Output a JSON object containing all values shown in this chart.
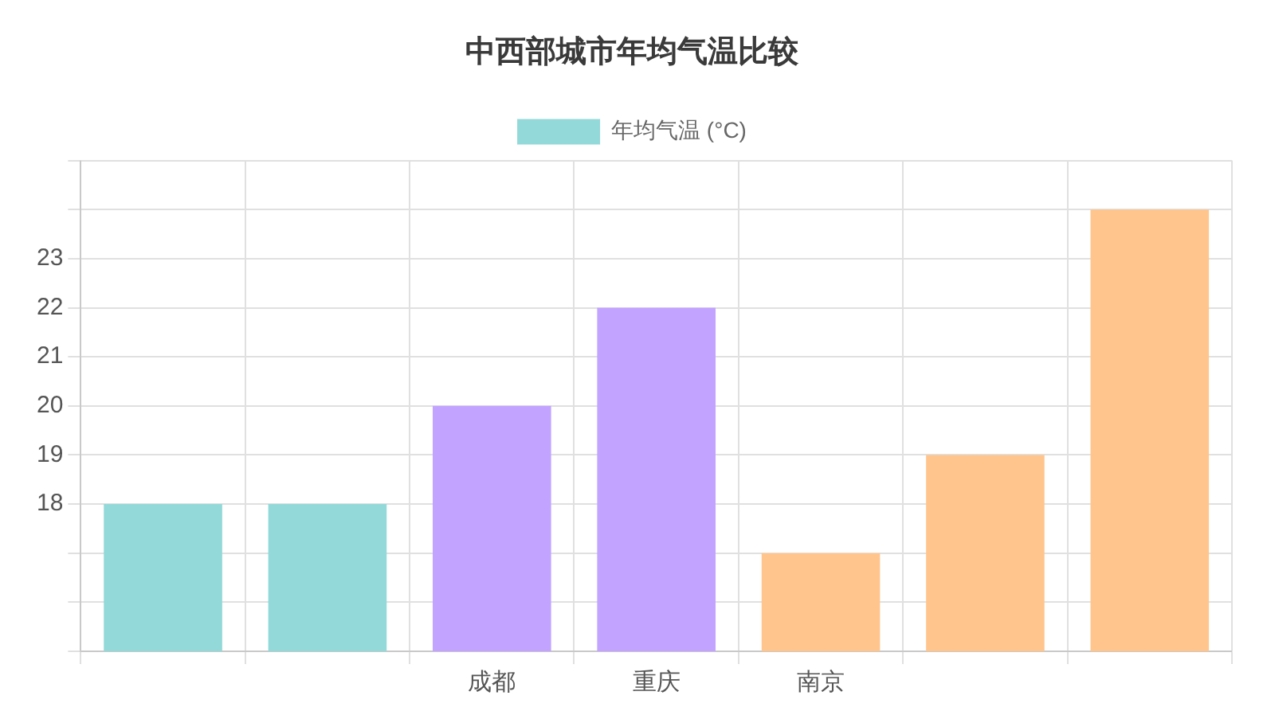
{
  "chart_data": {
    "type": "bar",
    "title": "中西部城市年均气温比较",
    "categories": [
      null,
      null,
      "成都",
      "重庆",
      "南京",
      null,
      null
    ],
    "series": [
      {
        "name": "年均气温 (°C)",
        "colors": [
          "#93d9d9",
          "#93d9d9",
          "#c2a3ff",
          "#c2a3ff",
          "#ffc58c",
          "#ffc58c",
          "#ffc58c"
        ],
        "values": [
          18,
          18,
          20,
          22,
          17,
          19,
          24
        ]
      }
    ],
    "ylim": [
      15,
      25
    ],
    "yticks": [
      {
        "value": 15,
        "label": null
      },
      {
        "value": 16,
        "label": null
      },
      {
        "value": 17,
        "label": null
      },
      18,
      19,
      20,
      21,
      22,
      23,
      {
        "value": 24,
        "label": null
      },
      {
        "value": 25,
        "label": null
      }
    ],
    "grid": true,
    "legend": "top"
  }
}
